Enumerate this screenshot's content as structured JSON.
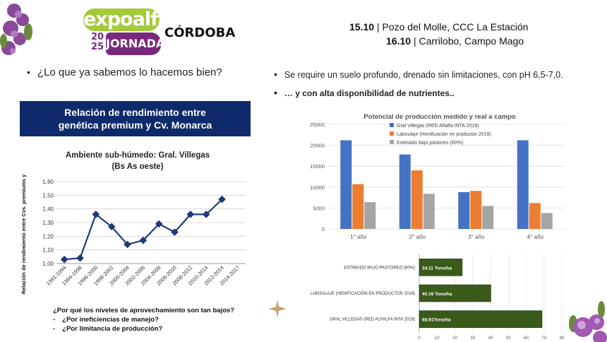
{
  "logo": {
    "expo": "expoalfa",
    "year_top": "20",
    "year_bottom": "25",
    "jornada": "JORNADA",
    "city": "CÓRDOBA"
  },
  "events": [
    {
      "date": "15.10",
      "separator": " | ",
      "place": "Pozo del Molle, CCC La Estación"
    },
    {
      "date": "16.10",
      "separator": " | ",
      "place": "Carrilobo, Campo Mago"
    }
  ],
  "left_bullet": "¿Lo que ya sabemos lo hacemos bien?",
  "right_bullets": [
    "Se require un suelo profundo, drenado sin limitaciones, con pH 6,5-7,0.",
    "… y con alta disponibilidad de nutrientes.."
  ],
  "banner": {
    "line1": "Relación de rendimiento entre",
    "line2": "genética premium y Cv. Monarca"
  },
  "questions": {
    "main": "¿Por qué los niveles de aprovechamiento son tan bajos?",
    "items": [
      "¿Por ineficiencias de manejo?",
      "¿Por limitancia de producción?"
    ],
    "dash": "-"
  },
  "colors": {
    "navy": "#0f2a6b",
    "green": "#a4c93a",
    "purple": "#7a2a7c",
    "blue_bar": "#4472c4",
    "orange_bar": "#ed7d31",
    "gray_bar": "#a5a5a5",
    "dark_green_bar": "#3a5a1a"
  },
  "chart_data": [
    {
      "type": "line",
      "title": "Ambiente sub-húmedo: Gral. Villegas",
      "subtitle": "(Bs As oeste)",
      "ylabel": "Relación de rendimiento entre Cvs. premiums y Monarca",
      "xlabel": "",
      "categories": [
        "1991-1994",
        "1994-1998",
        "1996-2000",
        "1998-2002",
        "2000-2004",
        "2002-2006",
        "2004-2008",
        "2006-2010",
        "2008-2012",
        "2010-2014",
        "2012-2014",
        "2014-2017"
      ],
      "values": [
        1.03,
        1.04,
        1.36,
        1.27,
        1.14,
        1.17,
        1.29,
        1.23,
        1.36,
        1.36,
        1.47,
        null
      ],
      "ylim": [
        1.0,
        1.6
      ],
      "yticks": [
        "1,00",
        "1,10",
        "1,20",
        "1,30",
        "1,40",
        "1,50",
        "1,60"
      ],
      "grid": true
    },
    {
      "type": "bar",
      "title": "Potencial de producción medido y real a campo",
      "categories": [
        "1° año",
        "2° año",
        "3° año",
        "4° año"
      ],
      "series": [
        {
          "name": "Gral Villegas (RED Alfalfa INTA 2019)",
          "values": [
            21200,
            17800,
            8800,
            21200
          ]
        },
        {
          "name": "Laboulaje (Henificación en productor 2018)",
          "values": [
            10700,
            14000,
            9100,
            6200
          ]
        },
        {
          "name": "Estimado bajo pastoreo (60%)",
          "values": [
            6400,
            8400,
            5500,
            3800
          ]
        }
      ],
      "ylim": [
        0,
        25000
      ],
      "yticks": [
        "0",
        "5000",
        "10000",
        "15000",
        "20000",
        "25000"
      ],
      "legend": "top-left",
      "grid": true
    },
    {
      "type": "bar",
      "orientation": "horizontal",
      "categories": [
        "ESTIMADO BAJO PASTOREO (60%)",
        "LABOULAJE (HENIFICACIÓN EN PRODUCTOR 2018)",
        "GRAL VILLEGAS (RED ALFALFA INTA 2019)"
      ],
      "values": [
        24.11,
        40.18,
        68.91
      ],
      "labels": [
        "24.11 Tons/ha",
        "40.18 Tons/ha",
        "68.91Tons/ha"
      ],
      "xlim": [
        0,
        80
      ],
      "xticks": [
        "0",
        "10",
        "20",
        "30",
        "40",
        "50",
        "60",
        "70",
        "80"
      ]
    }
  ]
}
